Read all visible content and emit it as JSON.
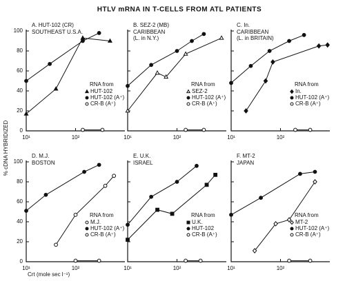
{
  "title": "HTLV mRNA IN T-CELLS FROM ATL PATIENTS",
  "ylabel": "% cDNA HYBRIDIZED",
  "xlabel": "Crt (mole sec l⁻¹)",
  "chart_data": [
    {
      "type": "scatter",
      "title": "A. HUT-102 (CR)",
      "subtitle": [
        "SOUTHEAST U.S.A."
      ],
      "legend_title": "RNA from",
      "xlim": [
        10,
        1000
      ],
      "xticks": [
        {
          "value": 10,
          "label": "10¹"
        },
        {
          "value": 100,
          "label": "10²"
        }
      ],
      "log_x": true,
      "ylim": [
        0,
        100
      ],
      "yticks": [
        0,
        20,
        40,
        60,
        80,
        100
      ],
      "show_ytick_labels": true,
      "series": [
        {
          "name": "HUT-102",
          "marker": "tri-filled",
          "color": "#111",
          "x": [
            10,
            40,
            140,
            500
          ],
          "values": [
            17,
            42,
            93,
            90
          ]
        },
        {
          "name": "HUT-102 (A⁺)",
          "marker": "circle-filled",
          "color": "#111",
          "x": [
            10,
            30,
            140,
            300
          ],
          "values": [
            50,
            67,
            90,
            98
          ]
        },
        {
          "name": "CR-B (A⁺)",
          "marker": "circle-open",
          "color": "#111",
          "x": [
            140,
            350
          ],
          "values": [
            1,
            1
          ]
        }
      ]
    },
    {
      "type": "scatter",
      "title": "B. SEZ-2 (MB)",
      "subtitle": [
        "CARIBBEAN",
        "(L. in N.Y.)"
      ],
      "legend_title": "RNA from",
      "xlim": [
        10,
        1000
      ],
      "xticks": [
        {
          "value": 10,
          "label": "10¹"
        },
        {
          "value": 100,
          "label": "10²"
        }
      ],
      "log_x": true,
      "ylim": [
        0,
        100
      ],
      "yticks": [
        0,
        20,
        40,
        60,
        80,
        100
      ],
      "show_ytick_labels": false,
      "series": [
        {
          "name": "SEZ-2",
          "marker": "tri-open",
          "color": "#111",
          "x": [
            10,
            40,
            60,
            150,
            800
          ],
          "values": [
            20,
            58,
            54,
            77,
            93
          ]
        },
        {
          "name": "HUT-102 (A⁺)",
          "marker": "circle-filled",
          "color": "#111",
          "x": [
            10,
            30,
            100,
            200,
            350
          ],
          "values": [
            45,
            66,
            80,
            90,
            97
          ]
        },
        {
          "name": "CR-B (A⁺)",
          "marker": "circle-open",
          "color": "#111",
          "x": [
            150,
            350
          ],
          "values": [
            1,
            1
          ]
        }
      ]
    },
    {
      "type": "scatter",
      "title": "C. In.",
      "subtitle": [
        "CARIBBEAN",
        "(L. in BRITAIN)"
      ],
      "legend_title": "RNA from",
      "xlim": [
        10,
        1000
      ],
      "xticks": [
        {
          "value": 10,
          "label": "10¹"
        },
        {
          "value": 100,
          "label": "10²"
        }
      ],
      "log_x": true,
      "ylim": [
        0,
        100
      ],
      "yticks": [
        0,
        20,
        40,
        60,
        80,
        100
      ],
      "show_ytick_labels": false,
      "series": [
        {
          "name": "In.",
          "marker": "diamond-filled",
          "color": "#111",
          "x": [
            20,
            50,
            70,
            600,
            900
          ],
          "values": [
            20,
            50,
            69,
            85,
            86
          ]
        },
        {
          "name": "HUT-102 (A⁺)",
          "marker": "circle-filled",
          "color": "#111",
          "x": [
            10,
            25,
            60,
            150,
            300
          ],
          "values": [
            48,
            65,
            80,
            90,
            96
          ]
        },
        {
          "name": "CR-B (A⁺)",
          "marker": "circle-open",
          "color": "#111",
          "x": [
            200,
            400
          ],
          "values": [
            1,
            1
          ]
        }
      ]
    },
    {
      "type": "scatter",
      "title": "D. M.J.",
      "subtitle": [
        "BOSTON"
      ],
      "legend_title": "RNA from",
      "xlim": [
        10,
        1000
      ],
      "xticks": [
        {
          "value": 10,
          "label": "10¹"
        },
        {
          "value": 100,
          "label": "10²"
        }
      ],
      "log_x": true,
      "ylim": [
        0,
        100
      ],
      "yticks": [
        0,
        20,
        40,
        60,
        80,
        100
      ],
      "show_ytick_labels": true,
      "series": [
        {
          "name": "M.J.",
          "marker": "circle-open",
          "color": "#111",
          "x": [
            40,
            100,
            400,
            600
          ],
          "values": [
            17,
            47,
            76,
            86
          ]
        },
        {
          "name": "HUT-102 (A⁺)",
          "marker": "circle-filled",
          "color": "#111",
          "x": [
            10,
            25,
            150,
            300
          ],
          "values": [
            51,
            67,
            90,
            97
          ]
        },
        {
          "name": "CR-B (A⁺)",
          "marker": "circle-open",
          "color": "#111",
          "x": [
            100,
            300
          ],
          "values": [
            1,
            1
          ]
        }
      ]
    },
    {
      "type": "scatter",
      "title": "E. U.K.",
      "subtitle": [
        "ISRAEL"
      ],
      "legend_title": "RNA from",
      "xlim": [
        10,
        1000
      ],
      "xticks": [
        {
          "value": 10,
          "label": "10¹"
        },
        {
          "value": 100,
          "label": "10²"
        }
      ],
      "log_x": true,
      "ylim": [
        0,
        100
      ],
      "yticks": [
        0,
        20,
        40,
        60,
        80,
        100
      ],
      "show_ytick_labels": false,
      "series": [
        {
          "name": "U.K.",
          "marker": "square-filled",
          "color": "#111",
          "x": [
            10,
            40,
            80,
            400,
            600
          ],
          "values": [
            22,
            52,
            48,
            77,
            87
          ]
        },
        {
          "name": "HUT-102",
          "marker": "circle-filled",
          "color": "#111",
          "x": [
            10,
            30,
            100,
            250
          ],
          "values": [
            37,
            65,
            80,
            96
          ]
        },
        {
          "name": "CR-B (A⁺)",
          "marker": "circle-open",
          "color": "#111",
          "x": [
            150,
            300
          ],
          "values": [
            1,
            1
          ]
        }
      ]
    },
    {
      "type": "scatter",
      "title": "F. MT-2",
      "subtitle": [
        "JAPAN"
      ],
      "legend_title": "RNA from",
      "xlim": [
        10,
        1000
      ],
      "xticks": [
        {
          "value": 10,
          "label": "10¹"
        },
        {
          "value": 100,
          "label": "10²"
        }
      ],
      "log_x": true,
      "ylim": [
        0,
        100
      ],
      "yticks": [
        0,
        20,
        40,
        60,
        80,
        100
      ],
      "show_ytick_labels": false,
      "series": [
        {
          "name": "MT-2",
          "marker": "diamond-open",
          "color": "#111",
          "x": [
            30,
            80,
            150,
            500
          ],
          "values": [
            11,
            38,
            42,
            80
          ]
        },
        {
          "name": "HUT-102 (A⁺)",
          "marker": "circle-filled",
          "color": "#111",
          "x": [
            10,
            40,
            250,
            500
          ],
          "values": [
            47,
            64,
            88,
            90
          ]
        },
        {
          "name": "CR-B (A⁺)",
          "marker": "circle-open",
          "color": "#111",
          "x": [
            150,
            400
          ],
          "values": [
            1,
            1
          ]
        }
      ]
    }
  ]
}
